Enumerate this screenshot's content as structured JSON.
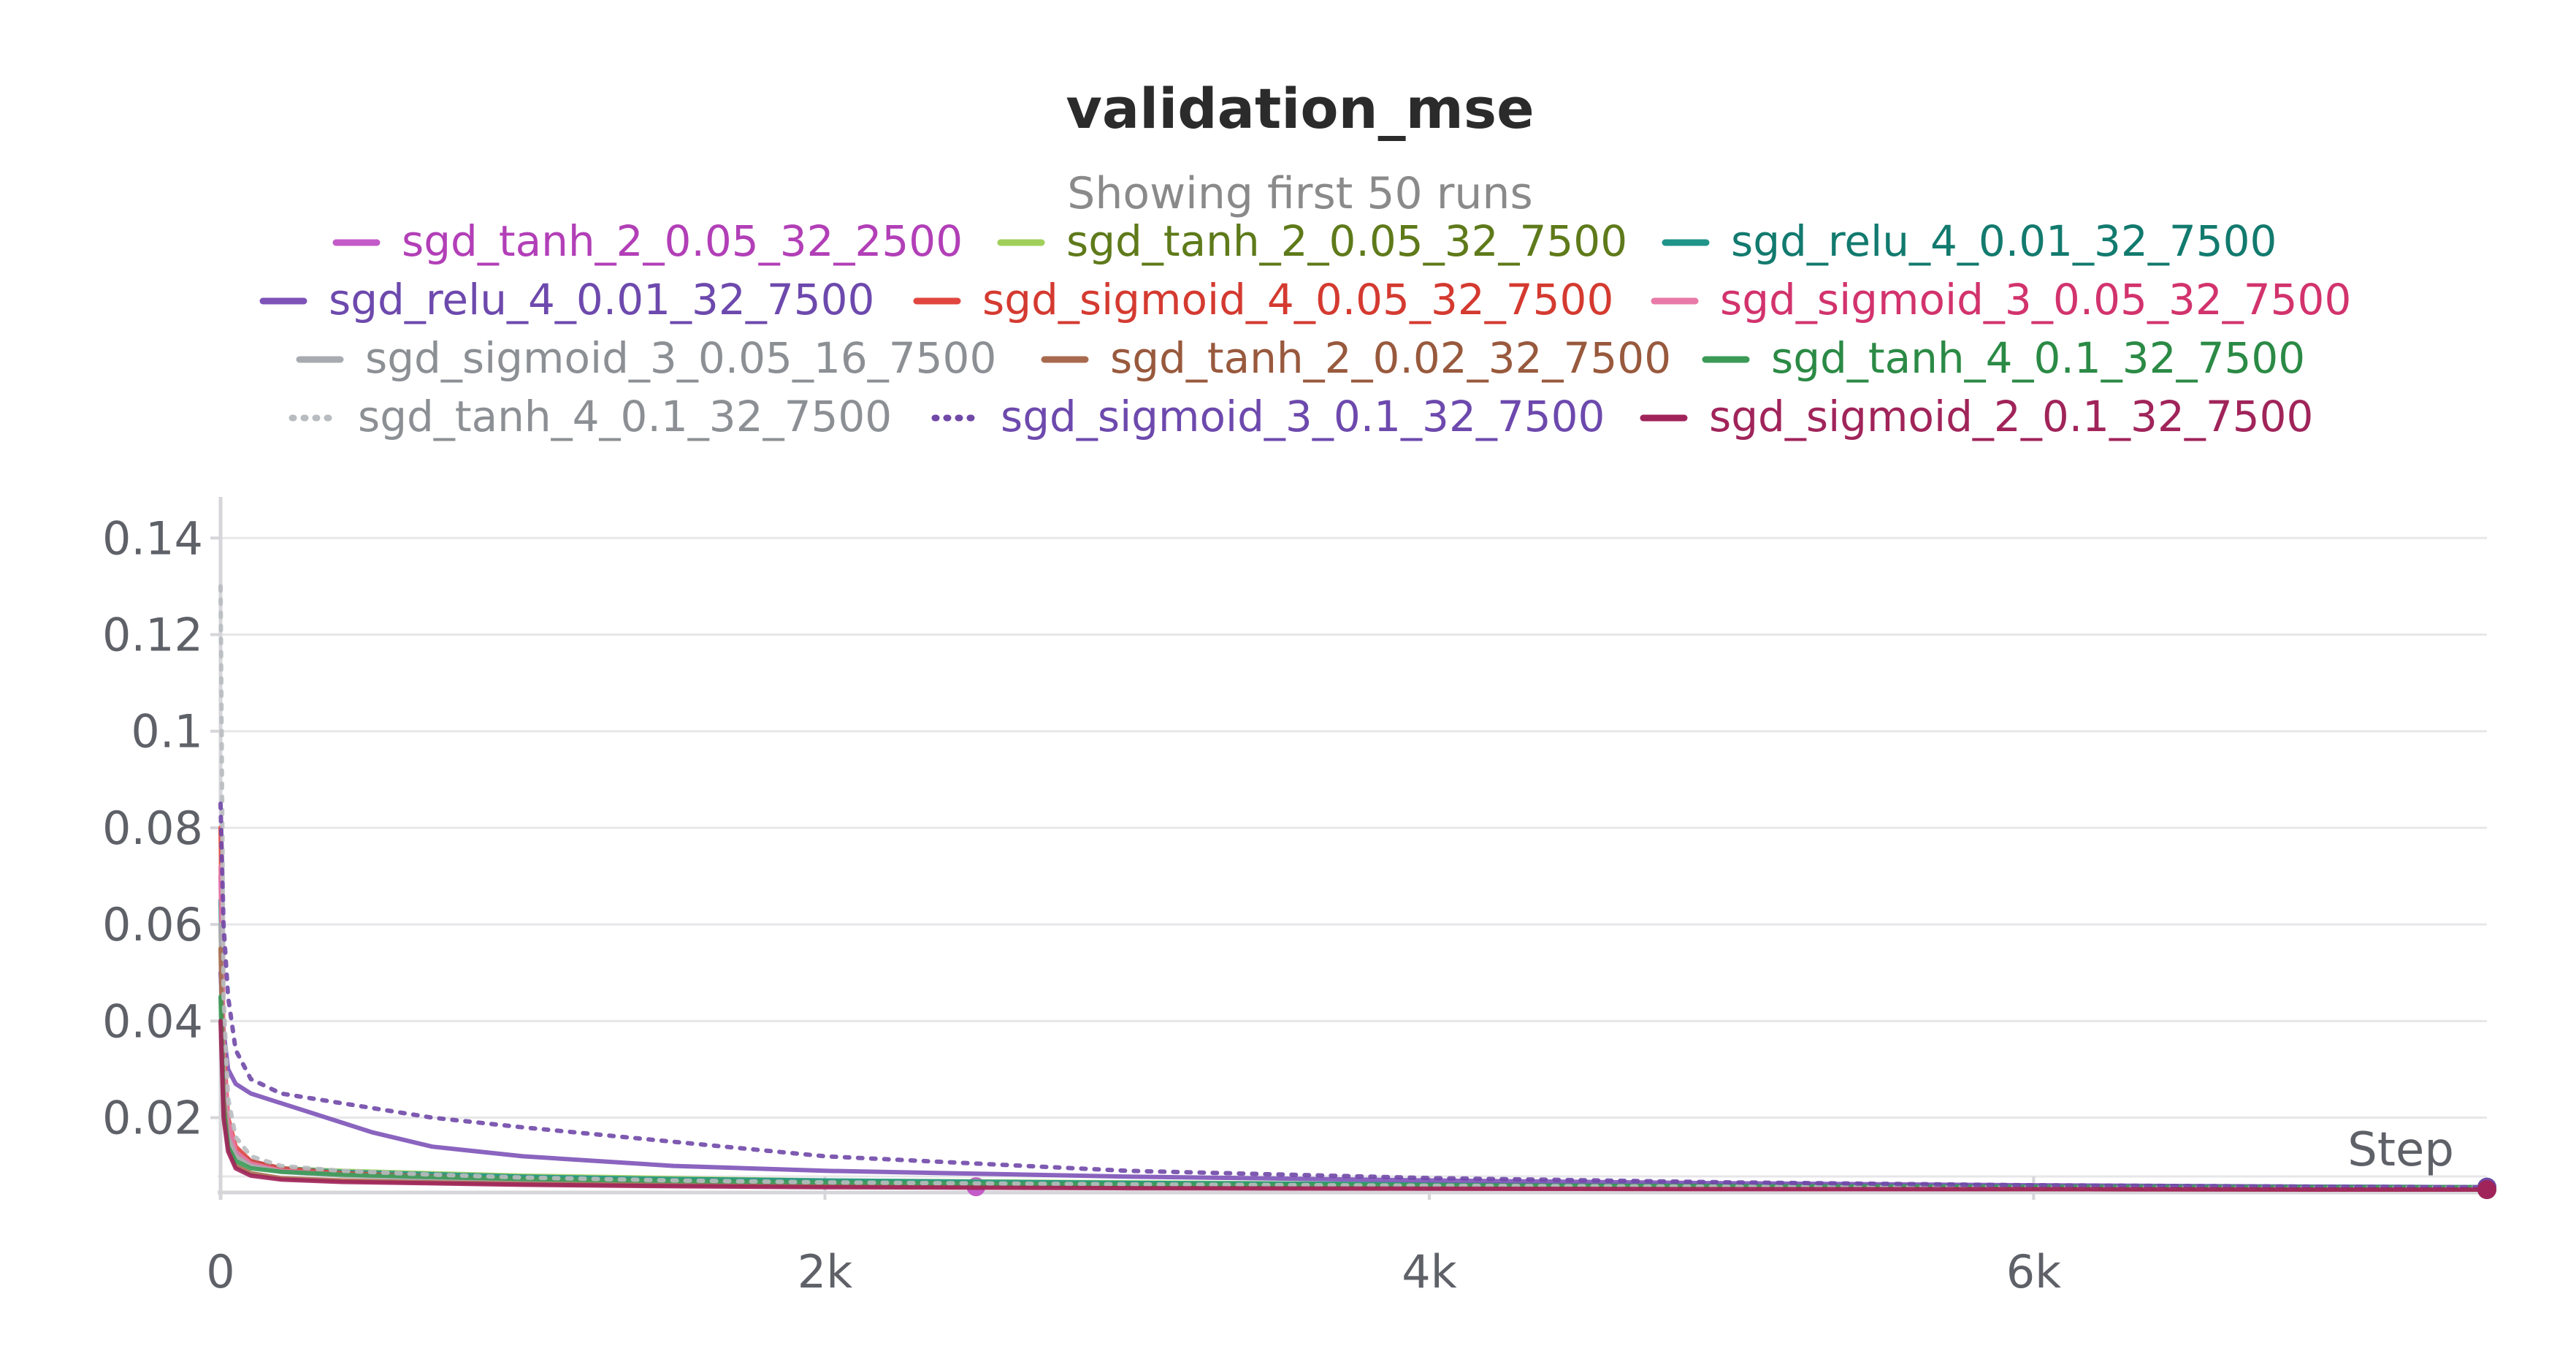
{
  "chart_data": {
    "type": "line",
    "title": "validation_mse",
    "subtitle": "Showing first 50 runs",
    "xlabel": "Step",
    "ylabel": "",
    "xlim": [
      0,
      7500
    ],
    "ylim": [
      0.0045,
      0.147
    ],
    "x_ticks": [
      {
        "value": 0,
        "label": "0"
      },
      {
        "value": 2000,
        "label": "2k"
      },
      {
        "value": 4000,
        "label": "4k"
      },
      {
        "value": 6000,
        "label": "6k"
      }
    ],
    "y_ticks": [
      {
        "value": 0.02,
        "label": "0.02"
      },
      {
        "value": 0.04,
        "label": "0.04"
      },
      {
        "value": 0.06,
        "label": "0.06"
      },
      {
        "value": 0.08,
        "label": "0.08"
      },
      {
        "value": 0.1,
        "label": "0.1"
      },
      {
        "value": 0.12,
        "label": "0.12"
      },
      {
        "value": 0.14,
        "label": "0.14"
      }
    ],
    "grid": true,
    "legend_position": "top",
    "series": [
      {
        "name": "sgd_tanh_2_0.05_32_2500",
        "color": "#c35bc8",
        "text_color": "#b23fb7",
        "dash": "solid",
        "x": [
          0,
          10,
          25,
          50,
          100,
          200,
          400,
          700,
          1000,
          1500,
          2000,
          2500
        ],
        "y": [
          0.07,
          0.03,
          0.018,
          0.013,
          0.011,
          0.0095,
          0.0085,
          0.0078,
          0.0072,
          0.0065,
          0.006,
          0.0057
        ]
      },
      {
        "name": "sgd_tanh_2_0.05_32_7500",
        "color": "#a0cf5a",
        "text_color": "#5e7a1a",
        "dash": "solid",
        "x": [
          0,
          10,
          25,
          50,
          100,
          200,
          400,
          700,
          1000,
          1500,
          2000,
          3000,
          4000,
          5000,
          6000,
          7000,
          7500
        ],
        "y": [
          0.06,
          0.028,
          0.017,
          0.012,
          0.0105,
          0.0095,
          0.009,
          0.0085,
          0.008,
          0.0075,
          0.007,
          0.0066,
          0.0062,
          0.006,
          0.0058,
          0.0056,
          0.0055
        ]
      },
      {
        "name": "sgd_relu_4_0.01_32_7500",
        "color": "#1f9488",
        "text_color": "#127a6e",
        "dash": "solid",
        "x": [
          0,
          10,
          25,
          50,
          100,
          200,
          400,
          700,
          1000,
          1500,
          2000,
          3000,
          4000,
          5000,
          6000,
          7000,
          7500
        ],
        "y": [
          0.065,
          0.03,
          0.018,
          0.013,
          0.011,
          0.0095,
          0.0088,
          0.0083,
          0.0078,
          0.0073,
          0.007,
          0.0065,
          0.0062,
          0.006,
          0.0058,
          0.0057,
          0.0056
        ]
      },
      {
        "name": "sgd_relu_4_0.01_32_7500",
        "color": "#7d53b8",
        "text_color": "#6d49ad",
        "dash": "solid",
        "x": [
          0,
          10,
          25,
          50,
          100,
          200,
          300,
          400,
          500,
          700,
          1000,
          1500,
          2000,
          3000,
          4000,
          5000,
          6000,
          7000,
          7500
        ],
        "y": [
          0.05,
          0.038,
          0.03,
          0.027,
          0.025,
          0.023,
          0.021,
          0.019,
          0.017,
          0.014,
          0.012,
          0.01,
          0.009,
          0.0078,
          0.007,
          0.0064,
          0.006,
          0.0057,
          0.0056
        ]
      },
      {
        "name": "sgd_sigmoid_4_0.05_32_7500",
        "color": "#e0463f",
        "text_color": "#d43a30",
        "dash": "solid",
        "x": [
          0,
          10,
          25,
          50,
          100,
          200,
          400,
          700,
          1000,
          1500,
          2000,
          3000,
          4000,
          5000,
          6000,
          7000,
          7500
        ],
        "y": [
          0.08,
          0.035,
          0.02,
          0.014,
          0.011,
          0.0095,
          0.0085,
          0.0078,
          0.0072,
          0.0066,
          0.0062,
          0.0058,
          0.0055,
          0.0054,
          0.0053,
          0.0052,
          0.0052
        ]
      },
      {
        "name": "sgd_sigmoid_3_0.05_32_7500",
        "color": "#e87aa8",
        "text_color": "#d2336d",
        "dash": "solid",
        "x": [
          0,
          10,
          25,
          50,
          100,
          200,
          400,
          700,
          1000,
          1500,
          2000,
          3000,
          4000,
          5000,
          6000,
          7000,
          7500
        ],
        "y": [
          0.072,
          0.032,
          0.019,
          0.013,
          0.0105,
          0.009,
          0.0082,
          0.0076,
          0.0071,
          0.0066,
          0.0062,
          0.0058,
          0.0056,
          0.0055,
          0.0054,
          0.0053,
          0.0053
        ]
      },
      {
        "name": "sgd_sigmoid_3_0.05_16_7500",
        "color": "#a8acb0",
        "text_color": "#8c9094",
        "dash": "solid",
        "x": [
          0,
          10,
          25,
          50,
          100,
          200,
          400,
          700,
          1000,
          1500,
          2000,
          3000,
          4000,
          5000,
          6000,
          7000,
          7500
        ],
        "y": [
          0.06,
          0.026,
          0.016,
          0.012,
          0.01,
          0.0088,
          0.008,
          0.0074,
          0.007,
          0.0065,
          0.0061,
          0.0058,
          0.0056,
          0.0055,
          0.0054,
          0.0053,
          0.0053
        ]
      },
      {
        "name": "sgd_tanh_2_0.02_32_7500",
        "color": "#a86a4f",
        "text_color": "#98593d",
        "dash": "solid",
        "x": [
          0,
          10,
          25,
          50,
          100,
          200,
          400,
          700,
          1000,
          1500,
          2000,
          2700,
          3000,
          4000,
          5000,
          6000,
          7000,
          7500
        ],
        "y": [
          0.055,
          0.024,
          0.014,
          0.01,
          0.0085,
          0.0075,
          0.007,
          0.0066,
          0.0063,
          0.006,
          0.0058,
          0.0057,
          0.0056,
          0.0054,
          0.0053,
          0.0052,
          0.0051,
          0.0051
        ]
      },
      {
        "name": "sgd_tanh_4_0.1_32_7500",
        "color": "#3a9a56",
        "text_color": "#2b8a45",
        "dash": "solid",
        "x": [
          0,
          10,
          25,
          50,
          100,
          200,
          400,
          700,
          1000,
          1500,
          2000,
          3000,
          4000,
          5000,
          6000,
          7000,
          7500
        ],
        "y": [
          0.045,
          0.022,
          0.014,
          0.011,
          0.0095,
          0.0088,
          0.0082,
          0.0077,
          0.0073,
          0.0069,
          0.0066,
          0.0062,
          0.006,
          0.0058,
          0.0057,
          0.0056,
          0.0056
        ]
      },
      {
        "name": "sgd_tanh_4_0.1_32_7500",
        "color": "#b8bcc0",
        "text_color": "#8c9094",
        "dash": "dotted",
        "x": [
          0,
          10,
          25,
          50,
          100,
          200,
          400,
          700,
          1000,
          1500,
          2000,
          3000,
          4000,
          5000,
          6000,
          7000,
          7500
        ],
        "y": [
          0.13,
          0.045,
          0.024,
          0.016,
          0.012,
          0.01,
          0.009,
          0.0082,
          0.0076,
          0.007,
          0.0066,
          0.0062,
          0.0059,
          0.0057,
          0.0056,
          0.0055,
          0.0055
        ]
      },
      {
        "name": "sgd_sigmoid_3_0.1_32_7500",
        "color": "#7048a8",
        "text_color": "#6d49ad",
        "dash": "dotted",
        "x": [
          0,
          10,
          25,
          50,
          100,
          200,
          300,
          400,
          500,
          700,
          1000,
          1500,
          2000,
          3000,
          4000,
          5000,
          6000,
          7000,
          7500
        ],
        "y": [
          0.085,
          0.06,
          0.045,
          0.034,
          0.028,
          0.025,
          0.024,
          0.023,
          0.022,
          0.02,
          0.018,
          0.015,
          0.012,
          0.009,
          0.0075,
          0.0066,
          0.006,
          0.0057,
          0.0056
        ]
      },
      {
        "name": "sgd_sigmoid_2_0.1_32_7500",
        "color": "#a0245a",
        "text_color": "#a0245a",
        "dash": "solid",
        "x": [
          0,
          10,
          25,
          50,
          100,
          200,
          400,
          700,
          1000,
          1500,
          2000,
          3000,
          4000,
          5000,
          6000,
          7000,
          7500
        ],
        "y": [
          0.04,
          0.02,
          0.013,
          0.0095,
          0.008,
          0.0072,
          0.0067,
          0.0064,
          0.0061,
          0.0058,
          0.0056,
          0.0054,
          0.0053,
          0.0052,
          0.0052,
          0.0051,
          0.0051
        ]
      }
    ]
  }
}
